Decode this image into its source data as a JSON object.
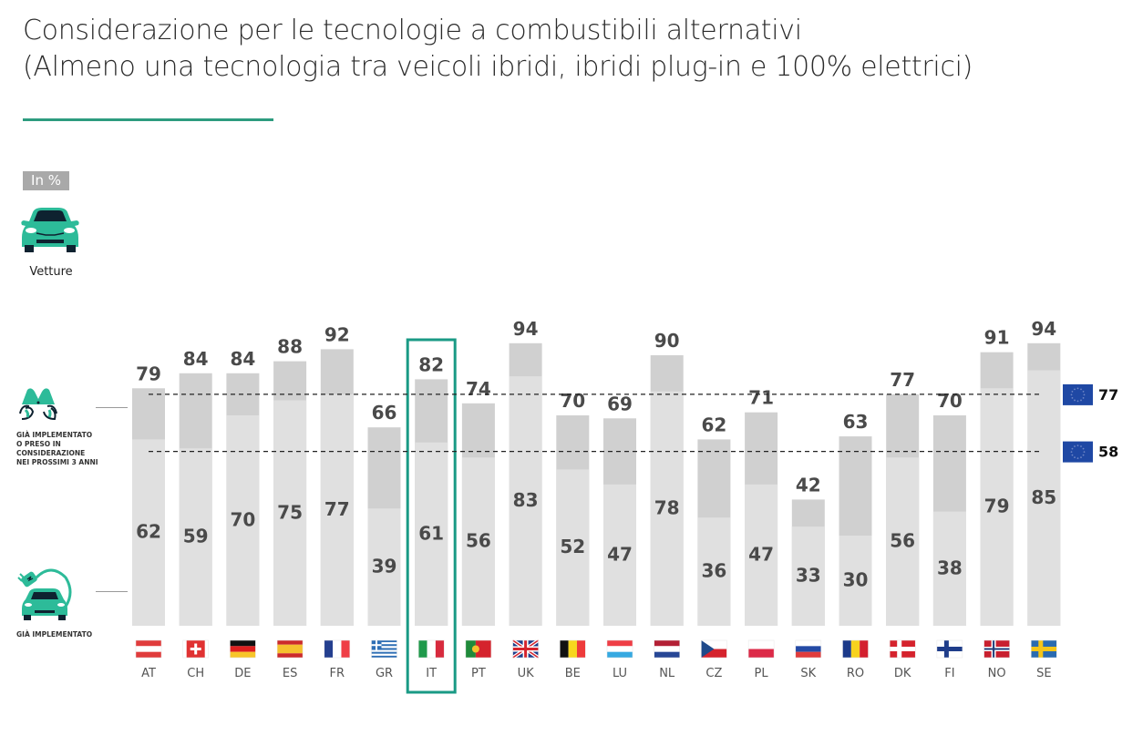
{
  "header": {
    "title_line1": "Considerazione per le tecnologie a combustibili alternativi",
    "title_line2": "(Almeno una tecnologia tra veicoli ibridi, ibridi plug-in e 100% elettrici)",
    "accent_color": "#2d9c7f"
  },
  "unit_badge": "In %",
  "segment": {
    "icon": "car-icon",
    "label": "Vetture"
  },
  "legend": {
    "considered": {
      "icon": "binoculars-icon",
      "lines": [
        "GIÀ IMPLEMENTATO",
        "O PRESO IN",
        "CONSIDERAZIONE",
        "NEI PROSSIMI 3 ANNI"
      ]
    },
    "implemented": {
      "icon": "electric-car-icon",
      "label": "GIÀ IMPLEMENTATO"
    }
  },
  "chart_data": {
    "type": "bar",
    "title": "Considerazione per le tecnologie a combustibili alternativi (Almeno una tecnologia tra veicoli ibridi, ibridi plug-in e 100% elettrici)",
    "unit": "In %",
    "xlabel": "",
    "ylabel": "",
    "ylim": [
      0,
      100
    ],
    "grid": false,
    "categories": [
      "AT",
      "CH",
      "DE",
      "ES",
      "FR",
      "GR",
      "IT",
      "PT",
      "UK",
      "BE",
      "LU",
      "NL",
      "CZ",
      "PL",
      "SK",
      "RO",
      "DK",
      "FI",
      "NO",
      "SE"
    ],
    "series": [
      {
        "name": "Già implementato o preso in considerazione nei prossimi 3 anni",
        "color": "#d0d0d0",
        "values": [
          79,
          84,
          84,
          88,
          92,
          66,
          82,
          74,
          94,
          70,
          69,
          90,
          62,
          71,
          42,
          63,
          77,
          70,
          91,
          94
        ]
      },
      {
        "name": "Già implementato",
        "color": "#e0e0e0",
        "values": [
          62,
          59,
          70,
          75,
          77,
          39,
          61,
          56,
          83,
          52,
          47,
          78,
          36,
          47,
          33,
          30,
          56,
          38,
          79,
          85
        ]
      }
    ],
    "reference_lines": [
      {
        "label": "EU",
        "series": "Già implementato o preso in considerazione nei prossimi 3 anni",
        "value": 77
      },
      {
        "label": "EU",
        "series": "Già implementato",
        "value": 58
      }
    ],
    "highlight": "IT",
    "highlight_color": "#1a9a85"
  }
}
